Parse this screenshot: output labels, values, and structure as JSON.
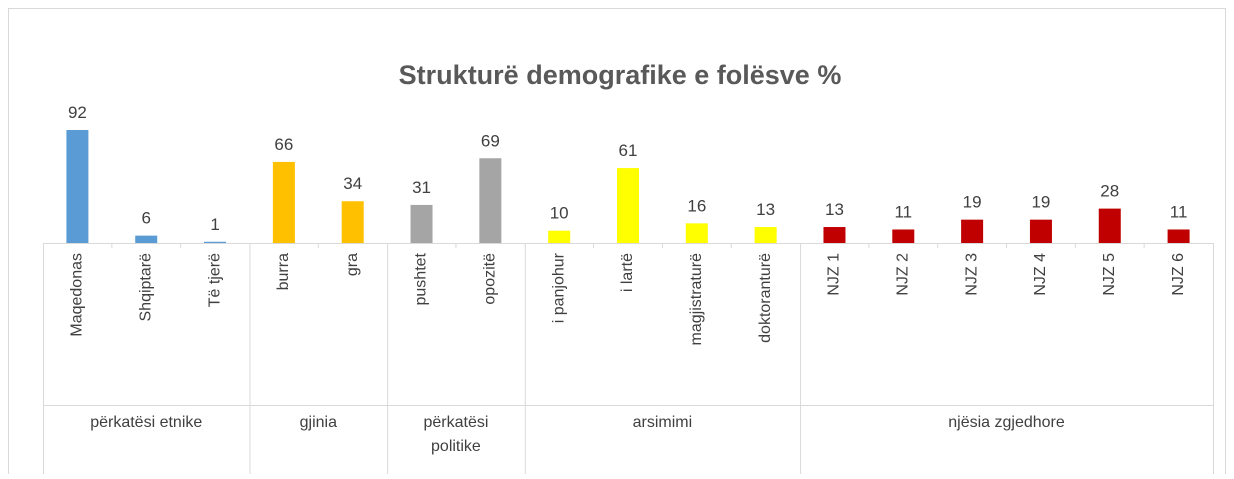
{
  "chart_data": {
    "type": "bar",
    "title": "Strukturë demografike e folësve %",
    "groups": [
      {
        "name": "përkatësi etnike",
        "color": "#5b9bd5",
        "categories": [
          "Maqedonas",
          "Shqiptarë",
          "Të tjerë"
        ],
        "values": [
          92,
          6,
          1
        ]
      },
      {
        "name": "gjinia",
        "color": "#ffc000",
        "categories": [
          "burra",
          "gra"
        ],
        "values": [
          66,
          34
        ]
      },
      {
        "name": "përkatësi politike",
        "color": "#a5a5a5",
        "categories": [
          "pushtet",
          "opozitë"
        ],
        "values": [
          31,
          69
        ]
      },
      {
        "name": "arsimimi",
        "color": "#ffff00",
        "categories": [
          "i panjohur",
          "i lartë",
          "magjistraturë",
          "doktoranturë"
        ],
        "values": [
          10,
          61,
          16,
          13
        ]
      },
      {
        "name": "njësia zgjedhore",
        "color": "#c00000",
        "categories": [
          "NJZ 1",
          "NJZ 2",
          "NJZ 3",
          "NJZ 4",
          "NJZ 5",
          "NJZ 6"
        ],
        "values": [
          13,
          11,
          19,
          19,
          28,
          11
        ]
      }
    ]
  }
}
